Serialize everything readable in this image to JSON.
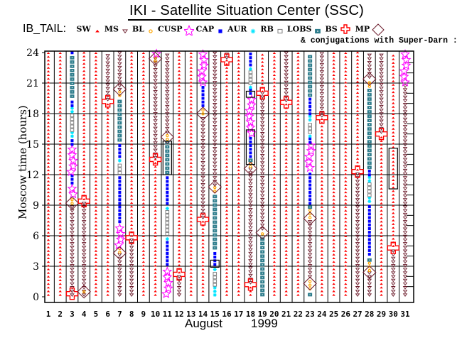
{
  "header": {
    "title": "IKI - Satellite Situation Center (SSC)",
    "legend_lead": "IB_TAIL:",
    "conjugation_note": "& conjugations with Super-Darn :"
  },
  "legend": [
    {
      "key": "SW",
      "label": "SW",
      "symbol": "red-star-icon",
      "color": "#ff0000"
    },
    {
      "key": "MS",
      "label": "MS",
      "symbol": "triangle-down-icon",
      "color": "#6b1a2a"
    },
    {
      "key": "BL",
      "label": "BL",
      "symbol": "sun-icon",
      "color": "#ffa500"
    },
    {
      "key": "CUSP",
      "label": "CUSP",
      "symbol": "open-star-icon",
      "color": "#ff00ff"
    },
    {
      "key": "CAP",
      "label": "CAP",
      "symbol": "dot-icon",
      "color": "#0000ff"
    },
    {
      "key": "AUR",
      "label": "AUR",
      "symbol": "asterisk-icon",
      "color": "#00e5ff"
    },
    {
      "key": "RB",
      "label": "RB",
      "symbol": "gray-square-icon",
      "color": "#808080"
    },
    {
      "key": "LOBS",
      "label": "LOBS",
      "symbol": "teal-square-icon",
      "color": "#2e7d8c"
    },
    {
      "key": "BS",
      "label": "BS",
      "symbol": "cross-icon",
      "color": "#ff0000"
    },
    {
      "key": "MP",
      "label": "MP",
      "symbol": "diamond-icon",
      "color": "#6b1a2a"
    }
  ],
  "chart_data": {
    "type": "scatter",
    "title": "IKI - Satellite Situation Center (SSC)",
    "xlabel": "August 1999",
    "month_label": "August",
    "year_label": "1999",
    "ylabel": "Moscow time (hours)",
    "xlim": [
      1,
      31
    ],
    "ylim": [
      0,
      24
    ],
    "x_ticks": [
      "1",
      "2",
      "3",
      "4",
      "5",
      "6",
      "7",
      "8",
      "9",
      "10",
      "11",
      "12",
      "13",
      "14",
      "15",
      "16",
      "17",
      "18",
      "19",
      "20",
      "21",
      "22",
      "23",
      "24",
      "25",
      "26",
      "27",
      "28",
      "29",
      "30",
      "31"
    ],
    "y_ticks": [
      "0",
      "3",
      "6",
      "9",
      "12",
      "15",
      "18",
      "21",
      "24"
    ],
    "grid": true,
    "legend_position": "top",
    "days": [
      {
        "day": 1,
        "segments": [
          {
            "region": "SW",
            "from": 0,
            "to": 24
          }
        ]
      },
      {
        "day": 2,
        "segments": [
          {
            "region": "SW",
            "from": 0,
            "to": 24
          }
        ]
      },
      {
        "day": 3,
        "segments": [
          {
            "region": "MS",
            "from": 0,
            "to": 9
          },
          {
            "region": "BL",
            "from": 9,
            "to": 9.8
          },
          {
            "region": "CUSP",
            "from": 9.8,
            "to": 11
          },
          {
            "region": "CAP",
            "from": 11,
            "to": 12
          },
          {
            "region": "CUSP",
            "from": 12,
            "to": 14.8
          },
          {
            "region": "CAP",
            "from": 14.8,
            "to": 15.6
          },
          {
            "region": "AUR",
            "from": 15.6,
            "to": 16.2
          },
          {
            "region": "RB",
            "from": 16.2,
            "to": 18
          },
          {
            "region": "AUR",
            "from": 18,
            "to": 18.6
          },
          {
            "region": "CAP",
            "from": 18.6,
            "to": 19.5
          },
          {
            "region": "LOBS",
            "from": 19.5,
            "to": 23.8
          },
          {
            "region": "CAP",
            "from": 23.8,
            "to": 24
          }
        ],
        "markers": [
          {
            "type": "MP",
            "t": 9.2
          },
          {
            "type": "BS",
            "t": 0.3
          }
        ]
      },
      {
        "day": 4,
        "segments": [
          {
            "region": "SW",
            "from": 9.4,
            "to": 24
          },
          {
            "region": "MS",
            "from": 0,
            "to": 9.4
          },
          {
            "region": "BL",
            "from": 0.3,
            "to": 0.8
          }
        ],
        "markers": [
          {
            "type": "BS",
            "t": 9.4
          },
          {
            "type": "MP",
            "t": 0.5
          }
        ]
      },
      {
        "day": 5,
        "segments": [
          {
            "region": "SW",
            "from": 0,
            "to": 24
          }
        ]
      },
      {
        "day": 6,
        "segments": [
          {
            "region": "SW",
            "from": 0,
            "to": 19.2
          },
          {
            "region": "MS",
            "from": 19.2,
            "to": 24
          }
        ],
        "markers": [
          {
            "type": "BS",
            "t": 19.2
          }
        ]
      },
      {
        "day": 7,
        "segments": [
          {
            "region": "MS",
            "from": 0,
            "to": 4.2
          },
          {
            "region": "BL",
            "from": 4.2,
            "to": 4.8
          },
          {
            "region": "CUSP",
            "from": 4.8,
            "to": 7.2
          },
          {
            "region": "CAP",
            "from": 7.2,
            "to": 12
          },
          {
            "region": "RB",
            "from": 12,
            "to": 13.2
          },
          {
            "region": "AUR",
            "from": 13.2,
            "to": 13.6
          },
          {
            "region": "CAP",
            "from": 13.6,
            "to": 15.2
          },
          {
            "region": "LOBS",
            "from": 15.2,
            "to": 19.6
          },
          {
            "region": "BL",
            "from": 19.6,
            "to": 20.2
          },
          {
            "region": "MS",
            "from": 20.2,
            "to": 24
          }
        ],
        "markers": [
          {
            "type": "MP",
            "t": 4.3
          },
          {
            "type": "MP",
            "t": 20.4
          }
        ]
      },
      {
        "day": 8,
        "segments": [
          {
            "region": "SW",
            "from": 5.8,
            "to": 24
          },
          {
            "region": "MS",
            "from": 0,
            "to": 5.8
          }
        ],
        "markers": [
          {
            "type": "BS",
            "t": 5.8
          }
        ]
      },
      {
        "day": 9,
        "segments": [
          {
            "region": "SW",
            "from": 0,
            "to": 24
          }
        ]
      },
      {
        "day": 10,
        "segments": [
          {
            "region": "SW",
            "from": 0,
            "to": 13.5
          },
          {
            "region": "MS",
            "from": 13.5,
            "to": 23.5
          },
          {
            "region": "BL",
            "from": 23,
            "to": 23.6
          },
          {
            "region": "CUSP",
            "from": 23.6,
            "to": 24
          }
        ],
        "markers": [
          {
            "type": "BS",
            "t": 13.5
          },
          {
            "type": "MP",
            "t": 23.4
          }
        ]
      },
      {
        "day": 11,
        "segments": [
          {
            "region": "CUSP",
            "from": 0,
            "to": 3
          },
          {
            "region": "CAP",
            "from": 3,
            "to": 5.5
          },
          {
            "region": "AUR",
            "from": 5.5,
            "to": 6
          },
          {
            "region": "RB",
            "from": 6,
            "to": 8.5
          },
          {
            "region": "AUR",
            "from": 8.5,
            "to": 9
          },
          {
            "region": "CAP",
            "from": 9,
            "to": 12
          },
          {
            "region": "LOBS",
            "from": 12,
            "to": 15.3
          },
          {
            "region": "BL",
            "from": 15.3,
            "to": 16
          },
          {
            "region": "MS",
            "from": 16,
            "to": 24
          }
        ],
        "markers": [
          {
            "type": "MP",
            "t": 15.7
          }
        ]
      },
      {
        "day": 12,
        "segments": [
          {
            "region": "SW",
            "from": 2.2,
            "to": 24
          },
          {
            "region": "MS",
            "from": 0,
            "to": 2.2
          }
        ],
        "markers": [
          {
            "type": "BS",
            "t": 2.2
          }
        ]
      },
      {
        "day": 13,
        "segments": [
          {
            "region": "SW",
            "from": 0,
            "to": 24
          }
        ]
      },
      {
        "day": 14,
        "segments": [
          {
            "region": "SW",
            "from": 0,
            "to": 7.6
          },
          {
            "region": "MS",
            "from": 7.6,
            "to": 17.8
          },
          {
            "region": "BL",
            "from": 17.8,
            "to": 18.6
          },
          {
            "region": "CAP",
            "from": 18.6,
            "to": 20.8
          },
          {
            "region": "CUSP",
            "from": 20.8,
            "to": 24
          }
        ],
        "markers": [
          {
            "type": "BS",
            "t": 7.6
          },
          {
            "type": "MP",
            "t": 18
          }
        ]
      },
      {
        "day": 15,
        "segments": [
          {
            "region": "AUR",
            "from": 0,
            "to": 1
          },
          {
            "region": "RB",
            "from": 1,
            "to": 2.5
          },
          {
            "region": "AUR",
            "from": 2.5,
            "to": 3
          },
          {
            "region": "CAP",
            "from": 3,
            "to": 4.6
          },
          {
            "region": "LOBS",
            "from": 4.6,
            "to": 10.2
          },
          {
            "region": "BL",
            "from": 10.2,
            "to": 10.8
          },
          {
            "region": "MS",
            "from": 10.8,
            "to": 24
          }
        ],
        "markers": [
          {
            "type": "MP",
            "t": 10.8
          }
        ]
      },
      {
        "day": 16,
        "segments": [
          {
            "region": "SW",
            "from": 0,
            "to": 23.3
          },
          {
            "region": "MS",
            "from": 23.3,
            "to": 24
          }
        ],
        "markers": [
          {
            "type": "BS",
            "t": 23.3
          }
        ]
      },
      {
        "day": 17,
        "segments": [
          {
            "region": "SW",
            "from": 0,
            "to": 24
          }
        ]
      },
      {
        "day": 18,
        "segments": [
          {
            "region": "SW",
            "from": 0,
            "to": 1.2
          },
          {
            "region": "MS",
            "from": 1.2,
            "to": 12.6
          },
          {
            "region": "BL",
            "from": 12.6,
            "to": 13.2
          },
          {
            "region": "LOBS",
            "from": 13.2,
            "to": 13.6
          },
          {
            "region": "CAP",
            "from": 13.6,
            "to": 15.8
          },
          {
            "region": "CUSP",
            "from": 15.8,
            "to": 19.8
          },
          {
            "region": "CAP",
            "from": 19.8,
            "to": 20.4
          },
          {
            "region": "AUR",
            "from": 20.4,
            "to": 20.8
          },
          {
            "region": "RB",
            "from": 20.8,
            "to": 22.2
          },
          {
            "region": "AUR",
            "from": 22.2,
            "to": 22.6
          },
          {
            "region": "CAP",
            "from": 22.6,
            "to": 24
          }
        ],
        "markers": [
          {
            "type": "BS",
            "t": 1.2
          },
          {
            "type": "MP",
            "t": 12.6
          }
        ]
      },
      {
        "day": 19,
        "segments": [
          {
            "region": "LOBS",
            "from": 0,
            "to": 6
          },
          {
            "region": "BL",
            "from": 6,
            "to": 6.5
          },
          {
            "region": "MS",
            "from": 6.5,
            "to": 20
          },
          {
            "region": "SW",
            "from": 20,
            "to": 24
          }
        ],
        "markers": [
          {
            "type": "MP",
            "t": 6.3
          },
          {
            "type": "BS",
            "t": 20
          }
        ]
      },
      {
        "day": 20,
        "segments": [
          {
            "region": "SW",
            "from": 0,
            "to": 24
          }
        ]
      },
      {
        "day": 21,
        "segments": [
          {
            "region": "SW",
            "from": 0,
            "to": 19.1
          },
          {
            "region": "MS",
            "from": 19.1,
            "to": 24
          }
        ],
        "markers": [
          {
            "type": "BS",
            "t": 19.1
          }
        ]
      },
      {
        "day": 22,
        "segments": [
          {
            "region": "SW",
            "from": 0,
            "to": 24
          }
        ]
      },
      {
        "day": 23,
        "segments": [
          {
            "region": "LOBS",
            "from": 0,
            "to": 0.6
          },
          {
            "region": "BL",
            "from": 0.6,
            "to": 1.8
          },
          {
            "region": "MS",
            "from": 1.8,
            "to": 7.6
          },
          {
            "region": "BL",
            "from": 7.6,
            "to": 8.6
          },
          {
            "region": "LOBS",
            "from": 8.6,
            "to": 9
          },
          {
            "region": "CAP",
            "from": 9,
            "to": 12.4
          },
          {
            "region": "CUSP",
            "from": 12.4,
            "to": 15
          },
          {
            "region": "CAP",
            "from": 15,
            "to": 15.6
          },
          {
            "region": "AUR",
            "from": 15.6,
            "to": 16
          },
          {
            "region": "RB",
            "from": 16,
            "to": 17.2
          },
          {
            "region": "AUR",
            "from": 17.2,
            "to": 17.8
          },
          {
            "region": "CAP",
            "from": 17.8,
            "to": 19.6
          },
          {
            "region": "LOBS",
            "from": 19.6,
            "to": 24
          }
        ],
        "markers": [
          {
            "type": "MP",
            "t": 1.3
          },
          {
            "type": "MP",
            "t": 7.7
          }
        ]
      },
      {
        "day": 24,
        "segments": [
          {
            "region": "SW",
            "from": 0,
            "to": 17.6
          },
          {
            "region": "MS",
            "from": 17.6,
            "to": 24
          }
        ],
        "markers": [
          {
            "type": "BS",
            "t": 17.6
          }
        ]
      },
      {
        "day": 25,
        "segments": [
          {
            "region": "SW",
            "from": 0,
            "to": 24
          }
        ]
      },
      {
        "day": 26,
        "segments": [
          {
            "region": "SW",
            "from": 0,
            "to": 24
          }
        ]
      },
      {
        "day": 27,
        "segments": [
          {
            "region": "MS",
            "from": 0,
            "to": 12.3
          },
          {
            "region": "SW",
            "from": 12.3,
            "to": 24
          }
        ],
        "markers": [
          {
            "type": "BS",
            "t": 12.3
          }
        ]
      },
      {
        "day": 28,
        "segments": [
          {
            "region": "MS",
            "from": 0,
            "to": 2.4
          },
          {
            "region": "BL",
            "from": 2.4,
            "to": 3.4
          },
          {
            "region": "LOBS",
            "from": 3.4,
            "to": 4
          },
          {
            "region": "CAP",
            "from": 4,
            "to": 9.2
          },
          {
            "region": "AUR",
            "from": 9.2,
            "to": 9.8
          },
          {
            "region": "RB",
            "from": 9.8,
            "to": 11.2
          },
          {
            "region": "AUR",
            "from": 11.2,
            "to": 11.8
          },
          {
            "region": "CAP",
            "from": 11.8,
            "to": 12.5
          },
          {
            "region": "LOBS",
            "from": 12.5,
            "to": 20.5
          },
          {
            "region": "BL",
            "from": 20.5,
            "to": 21.4
          },
          {
            "region": "MS",
            "from": 21.4,
            "to": 24
          }
        ],
        "markers": [
          {
            "type": "MP",
            "t": 2.4
          },
          {
            "type": "MP",
            "t": 21.4
          }
        ]
      },
      {
        "day": 29,
        "segments": [
          {
            "region": "SW",
            "from": 0,
            "to": 16
          },
          {
            "region": "MS",
            "from": 16,
            "to": 24
          }
        ],
        "markers": [
          {
            "type": "BS",
            "t": 16
          }
        ]
      },
      {
        "day": 30,
        "segments": [
          {
            "region": "MS",
            "from": 0,
            "to": 4.8
          },
          {
            "region": "SW",
            "from": 4.8,
            "to": 24
          }
        ],
        "markers": [
          {
            "type": "BS",
            "t": 4.8
          }
        ]
      },
      {
        "day": 31,
        "segments": [
          {
            "region": "MS",
            "from": 0,
            "to": 20.8
          },
          {
            "region": "CUSP",
            "from": 20.8,
            "to": 24
          }
        ],
        "markers": []
      }
    ]
  }
}
